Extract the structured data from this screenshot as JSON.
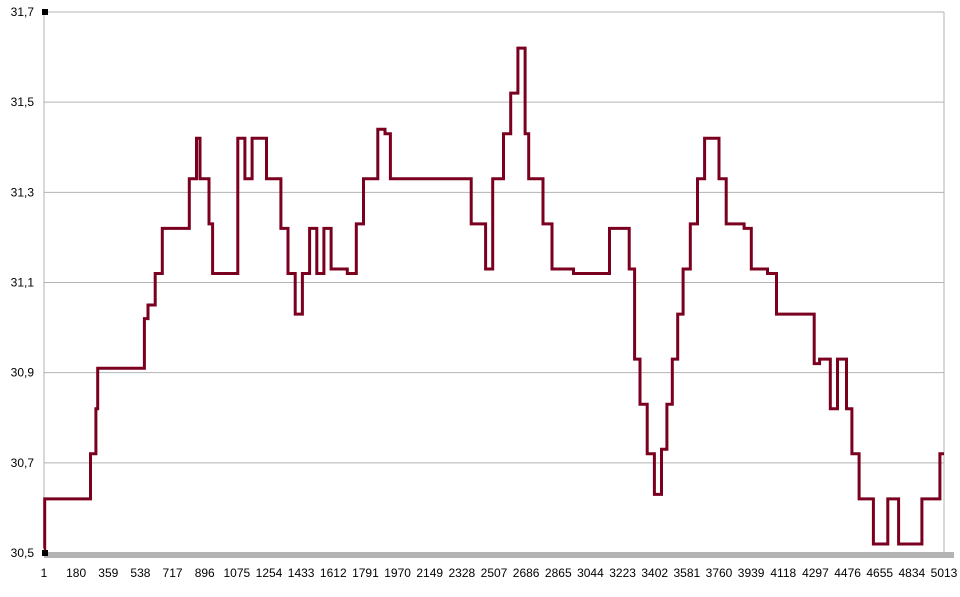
{
  "chart_data": {
    "type": "line",
    "title": "",
    "xlabel": "",
    "ylabel": "",
    "x_ticks": [
      "1",
      "180",
      "359",
      "538",
      "717",
      "896",
      "1075",
      "1254",
      "1433",
      "1612",
      "1791",
      "1970",
      "2149",
      "2328",
      "2507",
      "2686",
      "2865",
      "3044",
      "3223",
      "3402",
      "3581",
      "3760",
      "3939",
      "4118",
      "4297",
      "4476",
      "4655",
      "4834",
      "5013"
    ],
    "y_ticks": [
      "30,5",
      "30,7",
      "30,9",
      "31,1",
      "31,3",
      "31,5",
      "31,7"
    ],
    "xlim": [
      1,
      5013
    ],
    "ylim": [
      30.5,
      31.7
    ],
    "grid": true,
    "legend": "none",
    "series": [
      {
        "color": "#7b0020",
        "x": [
          1,
          5,
          60,
          190,
          260,
          290,
          300,
          330,
          360,
          480,
          520,
          560,
          580,
          620,
          660,
          700,
          760,
          810,
          850,
          870,
          920,
          940,
          970,
          1040,
          1080,
          1120,
          1160,
          1200,
          1240,
          1290,
          1320,
          1360,
          1400,
          1440,
          1480,
          1520,
          1560,
          1600,
          1650,
          1690,
          1740,
          1780,
          1820,
          1860,
          1900,
          1930,
          1960,
          2000,
          2050,
          2150,
          2250,
          2330,
          2380,
          2420,
          2460,
          2500,
          2530,
          2560,
          2600,
          2640,
          2680,
          2700,
          2740,
          2780,
          2830,
          2950,
          3040,
          3100,
          3150,
          3180,
          3220,
          3260,
          3290,
          3320,
          3360,
          3400,
          3420,
          3440,
          3470,
          3500,
          3530,
          3560,
          3600,
          3640,
          3680,
          3720,
          3760,
          3800,
          3860,
          3900,
          3940,
          3980,
          4030,
          4080,
          4140,
          4180,
          4220,
          4250,
          4290,
          4320,
          4380,
          4420,
          4470,
          4500,
          4540,
          4580,
          4620,
          4660,
          4700,
          4760,
          4800,
          4850,
          4890,
          4920,
          4950,
          4990,
          5013
        ],
        "y": [
          30.51,
          30.62,
          30.62,
          30.62,
          30.72,
          30.82,
          30.91,
          30.91,
          30.91,
          30.91,
          30.91,
          31.02,
          31.05,
          31.12,
          31.22,
          31.22,
          31.22,
          31.33,
          31.42,
          31.33,
          31.23,
          31.12,
          31.12,
          31.12,
          31.42,
          31.33,
          31.42,
          31.42,
          31.33,
          31.33,
          31.22,
          31.12,
          31.03,
          31.12,
          31.22,
          31.12,
          31.22,
          31.13,
          31.13,
          31.12,
          31.23,
          31.33,
          31.33,
          31.44,
          31.43,
          31.33,
          31.33,
          31.33,
          31.33,
          31.33,
          31.33,
          31.33,
          31.23,
          31.23,
          31.13,
          31.33,
          31.33,
          31.43,
          31.52,
          31.62,
          31.43,
          31.33,
          31.33,
          31.23,
          31.13,
          31.12,
          31.12,
          31.12,
          31.22,
          31.22,
          31.22,
          31.13,
          30.93,
          30.83,
          30.72,
          30.63,
          30.63,
          30.73,
          30.83,
          30.93,
          31.03,
          31.13,
          31.23,
          31.33,
          31.42,
          31.42,
          31.33,
          31.23,
          31.23,
          31.22,
          31.13,
          31.13,
          31.12,
          31.03,
          31.03,
          31.03,
          31.03,
          31.03,
          30.92,
          30.93,
          30.82,
          30.93,
          30.82,
          30.72,
          30.62,
          30.62,
          30.52,
          30.52,
          30.62,
          30.52,
          30.52,
          30.52,
          30.62,
          30.62,
          30.62,
          30.72,
          30.72
        ]
      }
    ]
  }
}
